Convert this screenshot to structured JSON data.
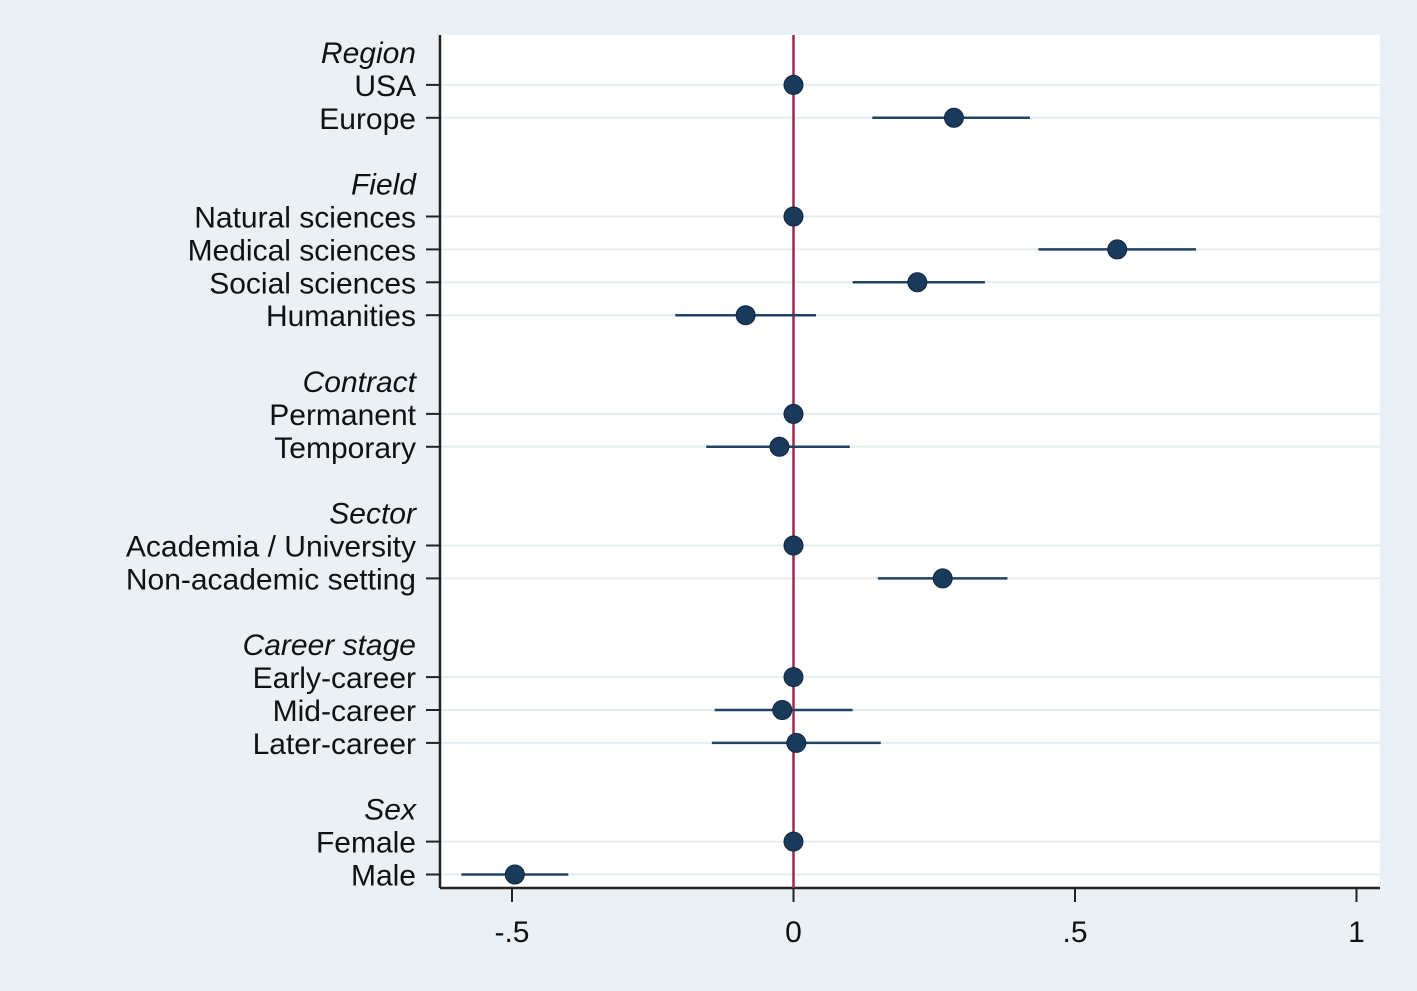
{
  "chart_data": {
    "type": "scatter",
    "subtype": "coefficient-plot",
    "title": "",
    "xlabel": "",
    "ylabel": "",
    "xlim": [
      -0.63,
      1.04
    ],
    "grid": true,
    "reference_line_x": 0,
    "colors": {
      "background": "#eaf0f3",
      "plot_background": "#ffffff",
      "grid": "#e6edf1",
      "reference_line": "#a1294d",
      "marker": "#1a3a5c",
      "ci_line": "#1f4466"
    },
    "x_ticks": [
      {
        "value": -0.5,
        "label": "-.5"
      },
      {
        "value": 0,
        "label": "0"
      },
      {
        "value": 0.5,
        "label": ".5"
      },
      {
        "value": 1,
        "label": "1"
      }
    ],
    "groups": [
      {
        "label": "Region",
        "items": [
          {
            "label": "USA",
            "estimate": 0,
            "ci": [
              0,
              0
            ]
          },
          {
            "label": "Europe",
            "estimate": 0.285,
            "ci": [
              0.14,
              0.42
            ]
          }
        ]
      },
      {
        "label": "Field",
        "items": [
          {
            "label": "Natural sciences",
            "estimate": 0,
            "ci": [
              0,
              0
            ]
          },
          {
            "label": "Medical sciences",
            "estimate": 0.575,
            "ci": [
              0.435,
              0.715
            ]
          },
          {
            "label": "Social sciences",
            "estimate": 0.22,
            "ci": [
              0.105,
              0.34
            ]
          },
          {
            "label": "Humanities",
            "estimate": -0.085,
            "ci": [
              -0.21,
              0.04
            ]
          }
        ]
      },
      {
        "label": "Contract",
        "items": [
          {
            "label": "Permanent",
            "estimate": 0,
            "ci": [
              0,
              0
            ]
          },
          {
            "label": "Temporary",
            "estimate": -0.025,
            "ci": [
              -0.155,
              0.1
            ]
          }
        ]
      },
      {
        "label": "Sector",
        "items": [
          {
            "label": "Academia / University",
            "estimate": 0,
            "ci": [
              0,
              0
            ]
          },
          {
            "label": "Non-academic setting",
            "estimate": 0.265,
            "ci": [
              0.15,
              0.38
            ]
          }
        ]
      },
      {
        "label": "Career stage",
        "items": [
          {
            "label": "Early-career",
            "estimate": 0,
            "ci": [
              0,
              0
            ]
          },
          {
            "label": "Mid-career",
            "estimate": -0.02,
            "ci": [
              -0.14,
              0.105
            ]
          },
          {
            "label": "Later-career",
            "estimate": 0.005,
            "ci": [
              -0.145,
              0.155
            ]
          }
        ]
      },
      {
        "label": "Sex",
        "items": [
          {
            "label": "Female",
            "estimate": 0,
            "ci": [
              0,
              0
            ]
          },
          {
            "label": "Male",
            "estimate": -0.495,
            "ci": [
              -0.59,
              -0.4
            ]
          }
        ]
      }
    ]
  }
}
